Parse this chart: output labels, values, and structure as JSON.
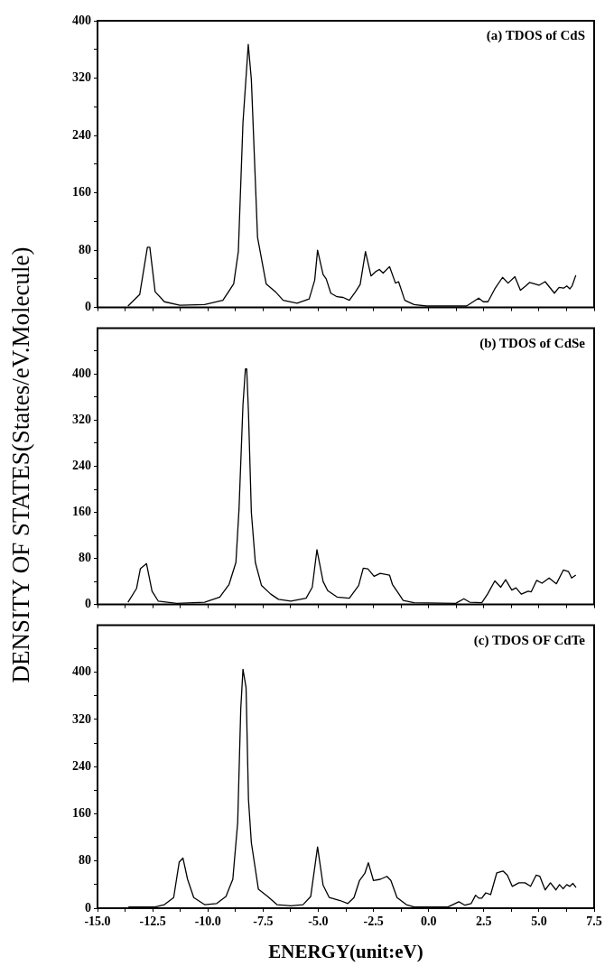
{
  "chart_data": [
    {
      "type": "line",
      "title": "(a) TDOS of CdS",
      "tick_labels": "y",
      "marker": "none",
      "line_style": "solid",
      "xlim": [
        -15,
        7.5
      ],
      "xticks": [
        -15,
        -13.75,
        -12.5,
        -11.25,
        -10,
        -8.75,
        -7.5,
        -6.25,
        -5,
        -3.75,
        -2.5,
        -1.25,
        0,
        1.25,
        2.5,
        3.75,
        5,
        6.25,
        7.5
      ],
      "ylim": [
        0,
        400
      ],
      "yticks": [
        0,
        {
          "value": 40,
          "label": null
        },
        80,
        {
          "value": 120,
          "label": null
        },
        160,
        {
          "value": 200,
          "label": null
        },
        240,
        {
          "value": 280,
          "label": null
        },
        320,
        {
          "value": 360,
          "label": null
        },
        400
      ],
      "series": [
        {
          "color": "#000000",
          "x": [
            -13.62,
            -13.09,
            -12.74,
            -12.63,
            -12.39,
            -11.97,
            -11.27,
            -10.15,
            -9.32,
            -8.83,
            -8.62,
            -8.41,
            -8.17,
            -8.03,
            -7.75,
            -7.36,
            -6.94,
            -6.59,
            -5.96,
            -5.41,
            -5.16,
            -5.03,
            -4.78,
            -4.64,
            -4.43,
            -4.15,
            -3.87,
            -3.59,
            -3.31,
            -3.1,
            -2.86,
            -2.61,
            -2.4,
            -2.23,
            -2.06,
            -1.77,
            -1.5,
            -1.36,
            -1.08,
            -0.66,
            -0.1,
            1.72,
            2.27,
            2.48,
            2.69,
            3.0,
            3.35,
            3.6,
            3.91,
            4.16,
            4.4,
            4.58,
            5.0,
            5.28,
            5.7,
            5.91,
            6.12,
            6.26,
            6.4,
            6.5,
            6.67
          ],
          "values": [
            2,
            18,
            84,
            84,
            22,
            8,
            3,
            4,
            10,
            33,
            78,
            258,
            367,
            318,
            98,
            33,
            22,
            10,
            6,
            12,
            38,
            80,
            46,
            40,
            20,
            15,
            14,
            10,
            22,
            32,
            78,
            44,
            50,
            53,
            48,
            57,
            34,
            36,
            10,
            4,
            2,
            2,
            13,
            8,
            8,
            26,
            42,
            34,
            43,
            24,
            30,
            35,
            31,
            36,
            20,
            28,
            27,
            30,
            26,
            30,
            45
          ]
        }
      ]
    },
    {
      "type": "line",
      "title": "(b) TDOS of CdSe",
      "ylabel": "DENSITY OF STATES(States/eV.Molecule)",
      "tick_labels": "y",
      "marker": "none",
      "line_style": "solid",
      "xlim": [
        -15,
        7.5
      ],
      "xticks": [
        -15,
        -13.75,
        -12.5,
        -11.25,
        -10,
        -8.75,
        -7.5,
        -6.25,
        -5,
        -3.75,
        -2.5,
        -1.25,
        0,
        1.25,
        2.5,
        3.75,
        5,
        6.25,
        7.5
      ],
      "ylim": [
        0,
        480
      ],
      "yticks": [
        0,
        {
          "value": 40,
          "label": null
        },
        80,
        {
          "value": 120,
          "label": null
        },
        160,
        {
          "value": 200,
          "label": null
        },
        240,
        {
          "value": 280,
          "label": null
        },
        320,
        {
          "value": 360,
          "label": null
        },
        400,
        {
          "value": 440,
          "label": null
        }
      ],
      "series": [
        {
          "color": "#000000",
          "x": [
            -13.62,
            -13.23,
            -13.06,
            -12.78,
            -12.53,
            -12.25,
            -11.41,
            -10.15,
            -9.46,
            -9.04,
            -8.73,
            -8.59,
            -8.41,
            -8.3,
            -8.24,
            -8.16,
            -8.03,
            -7.85,
            -7.57,
            -7.15,
            -6.8,
            -6.24,
            -5.55,
            -5.27,
            -5.06,
            -4.78,
            -4.57,
            -4.15,
            -3.59,
            -3.17,
            -2.96,
            -2.75,
            -2.47,
            -2.19,
            -1.77,
            -1.64,
            -1.43,
            -1.15,
            -0.66,
            1.23,
            1.6,
            1.86,
            2.41,
            2.67,
            3.0,
            3.27,
            3.49,
            3.77,
            3.96,
            4.2,
            4.51,
            4.65,
            4.9,
            5.14,
            5.46,
            5.79,
            6.11,
            6.34,
            6.48,
            6.67
          ],
          "values": [
            4,
            28,
            62,
            71,
            23,
            6,
            2,
            4,
            13,
            35,
            73,
            165,
            347,
            409,
            409,
            333,
            160,
            73,
            33,
            18,
            9,
            6,
            11,
            30,
            95,
            40,
            24,
            13,
            11,
            33,
            63,
            62,
            49,
            54,
            51,
            35,
            23,
            7,
            3,
            2,
            10,
            4,
            3,
            18,
            41,
            30,
            43,
            25,
            29,
            18,
            23,
            22,
            42,
            37,
            46,
            36,
            60,
            57,
            46,
            51
          ]
        }
      ]
    },
    {
      "type": "line",
      "title": "(c) TDOS OF CdTe",
      "xlabel": "ENERGY(unit:eV)",
      "marker": "none",
      "line_style": "solid",
      "xlim": [
        -15,
        7.5
      ],
      "xticks": [
        {
          "value": -15,
          "label": "-15.0"
        },
        {
          "value": -13.75,
          "label": null
        },
        {
          "value": -12.5,
          "label": "-12.5"
        },
        {
          "value": -11.25,
          "label": null
        },
        {
          "value": -10,
          "label": "-10.0"
        },
        {
          "value": -8.75,
          "label": null
        },
        {
          "value": -7.5,
          "label": "-7.5"
        },
        {
          "value": -6.25,
          "label": null
        },
        {
          "value": -5,
          "label": "-5.0"
        },
        {
          "value": -3.75,
          "label": null
        },
        {
          "value": -2.5,
          "label": "-2.5"
        },
        {
          "value": -1.25,
          "label": null
        },
        {
          "value": 0,
          "label": "0.0"
        },
        {
          "value": 1.25,
          "label": null
        },
        {
          "value": 2.5,
          "label": "2.5"
        },
        {
          "value": 3.75,
          "label": null
        },
        {
          "value": 5,
          "label": "5.0"
        },
        {
          "value": 6.25,
          "label": null
        },
        {
          "value": 7.5,
          "label": "7.5"
        }
      ],
      "ylim": [
        0,
        480
      ],
      "yticks": [
        0,
        {
          "value": 40,
          "label": null
        },
        80,
        {
          "value": 120,
          "label": null
        },
        160,
        {
          "value": 200,
          "label": null
        },
        240,
        {
          "value": 280,
          "label": null
        },
        320,
        {
          "value": 360,
          "label": null
        },
        400,
        {
          "value": 440,
          "label": null
        }
      ],
      "series": [
        {
          "color": "#000000",
          "x": [
            -13.6,
            -12.39,
            -11.97,
            -11.55,
            -11.3,
            -11.13,
            -10.92,
            -10.64,
            -10.15,
            -9.6,
            -9.18,
            -8.87,
            -8.65,
            -8.51,
            -8.41,
            -8.27,
            -8.16,
            -8.03,
            -7.71,
            -7.29,
            -6.87,
            -6.24,
            -5.69,
            -5.34,
            -5.03,
            -4.78,
            -4.5,
            -4.01,
            -3.66,
            -3.38,
            -3.13,
            -2.89,
            -2.73,
            -2.5,
            -2.19,
            -1.89,
            -1.71,
            -1.43,
            -1.01,
            -0.66,
            0.88,
            1.37,
            1.65,
            1.93,
            2.13,
            2.27,
            2.41,
            2.59,
            2.81,
            3.09,
            3.37,
            3.57,
            3.79,
            4.09,
            4.37,
            4.62,
            4.87,
            5.04,
            5.28,
            5.52,
            5.77,
            5.93,
            6.09,
            6.26,
            6.4,
            6.54,
            6.68
          ],
          "values": [
            2,
            2,
            6,
            18,
            78,
            85,
            49,
            18,
            6,
            8,
            20,
            49,
            145,
            338,
            405,
            374,
            184,
            111,
            32,
            20,
            6,
            4,
            6,
            20,
            104,
            39,
            18,
            13,
            8,
            18,
            47,
            59,
            77,
            47,
            49,
            54,
            47,
            18,
            6,
            2,
            2,
            11,
            5,
            8,
            22,
            17,
            17,
            26,
            23,
            60,
            63,
            56,
            37,
            43,
            43,
            37,
            56,
            54,
            31,
            43,
            31,
            40,
            33,
            40,
            37,
            42,
            35
          ]
        }
      ]
    }
  ]
}
